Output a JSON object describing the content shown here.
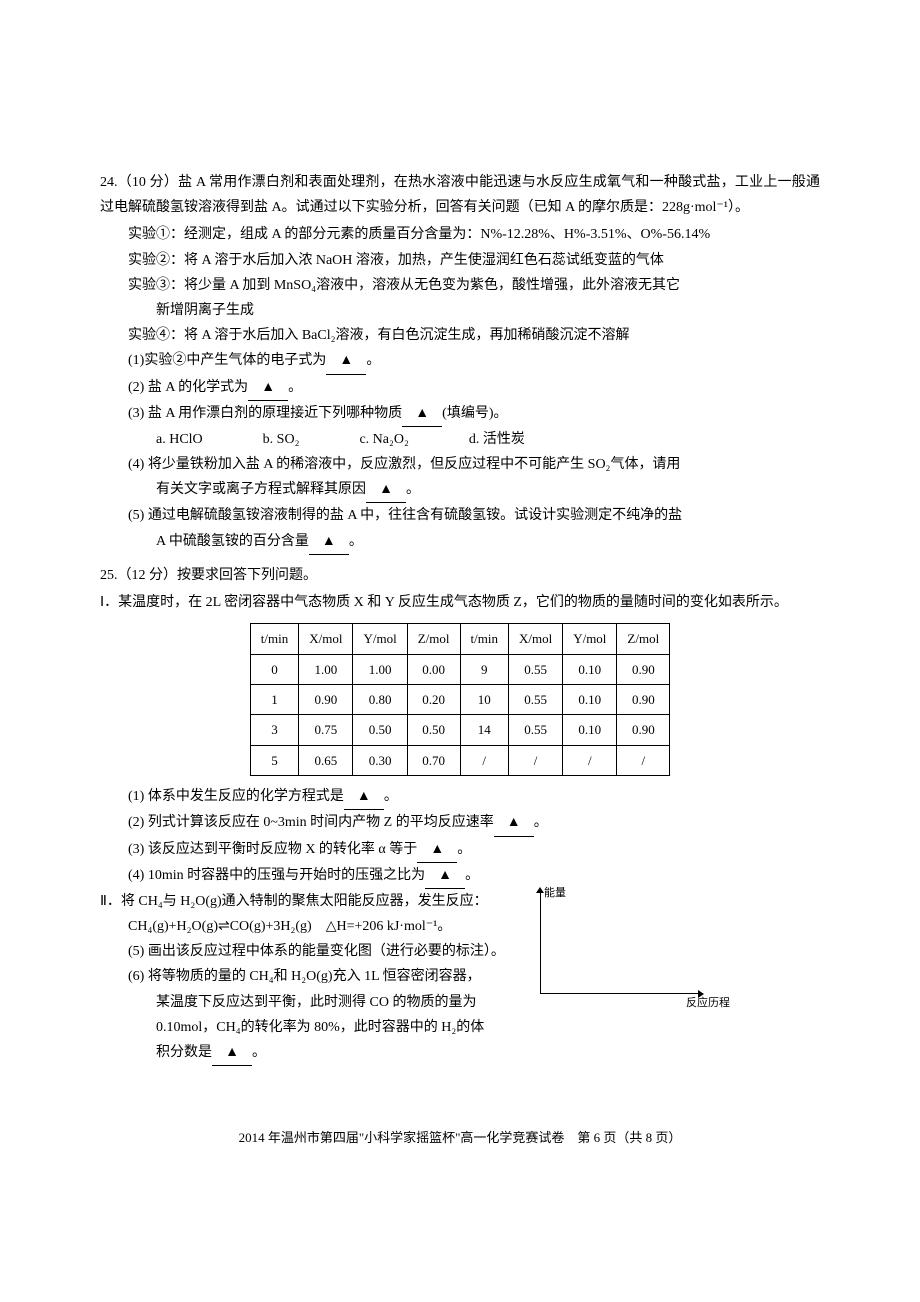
{
  "q24": {
    "header": "24.（10 分）盐 A 常用作漂白剂和表面处理剂，在热水溶液中能迅速与水反应生成氧气和一种酸式盐，工业上一般通过电解硫酸氢铵溶液得到盐 A。试通过以下实验分析，回答有关问题（已知 A 的摩尔质是：228g·mol⁻¹）。",
    "exp1": "实验①：经测定，组成 A 的部分元素的质量百分含量为：N%-12.28%、H%-3.51%、O%-56.14%",
    "exp2": "实验②：将 A 溶于水后加入浓 NaOH 溶液，加热，产生使湿润红色石蕊试纸变蓝的气体",
    "exp3_a": "实验③：将少量 A 加到 MnSO₄溶液中，溶液从无色变为紫色，酸性增强，此外溶液无其它",
    "exp3_b": "新增阴离子生成",
    "exp4": "实验④：将 A 溶于水后加入 BaCl₂溶液，有白色沉淀生成，再加稀硝酸沉淀不溶解",
    "sub1": "(1)实验②中产生气体的电子式为",
    "sub2": "(2) 盐 A 的化学式为",
    "sub3": "(3) 盐 A 用作漂白剂的原理接近下列哪种物质",
    "sub3_suffix": "(填编号)。",
    "options": {
      "a": "a. HClO",
      "b": "b. SO₂",
      "c": "c. Na₂O₂",
      "d": "d. 活性炭"
    },
    "sub4_a": "(4) 将少量铁粉加入盐 A 的稀溶液中，反应激烈，但反应过程中不可能产生 SO₂气体，请用",
    "sub4_b": "有关文字或离子方程式解释其原因",
    "sub5_a": "(5) 通过电解硫酸氢铵溶液制得的盐 A 中，往往含有硫酸氢铵。试设计实验测定不纯净的盐",
    "sub5_b": "A 中硫酸氢铵的百分含量"
  },
  "q25": {
    "header": "25.（12 分）按要求回答下列问题。",
    "part1_label": "Ⅰ",
    "part1_text": "．某温度时，在 2L 密闭容器中气态物质 X 和 Y 反应生成气态物质 Z，它们的物质的量随时间的变化如表所示。",
    "table": {
      "headers": [
        "t/min",
        "X/mol",
        "Y/mol",
        "Z/mol",
        "t/min",
        "X/mol",
        "Y/mol",
        "Z/mol"
      ],
      "rows": [
        [
          "0",
          "1.00",
          "1.00",
          "0.00",
          "9",
          "0.55",
          "0.10",
          "0.90"
        ],
        [
          "1",
          "0.90",
          "0.80",
          "0.20",
          "10",
          "0.55",
          "0.10",
          "0.90"
        ],
        [
          "3",
          "0.75",
          "0.50",
          "0.50",
          "14",
          "0.55",
          "0.10",
          "0.90"
        ],
        [
          "5",
          "0.65",
          "0.30",
          "0.70",
          "/",
          "/",
          "/",
          "/"
        ]
      ]
    },
    "sub1": "(1) 体系中发生反应的化学方程式是",
    "sub2": "(2) 列式计算该反应在 0~3min 时间内产物 Z 的平均反应速率",
    "sub3": "(3) 该反应达到平衡时反应物 X 的转化率 α 等于",
    "sub4": "(4) 10min 时容器中的压强与开始时的压强之比为",
    "part2_label": "Ⅱ",
    "part2_text": "．将 CH₄与 H₂O(g)通入特制的聚焦太阳能反应器，发生反应：",
    "part2_eq": "CH₄(g)+H₂O(g)⇌CO(g)+3H₂(g)　△H=+206 kJ·mol⁻¹。",
    "sub5": "(5) 画出该反应过程中体系的能量变化图（进行必要的标注）。",
    "sub6_a": "(6) 将等物质的量的 CH₄和 H₂O(g)充入 1L 恒容密闭容器，",
    "sub6_b": "某温度下反应达到平衡，此时测得 CO 的物质的量为",
    "sub6_c": "0.10mol，CH₄的转化率为 80%，此时容器中的 H₂的体",
    "sub6_d": "积分数是",
    "axis_y": "能量",
    "axis_x": "反应历程"
  },
  "blank_marker": "▲",
  "period": "。",
  "footer": "2014 年温州市第四届\"小科学家摇篮杯\"高一化学竞赛试卷　第 6 页（共 8 页）"
}
